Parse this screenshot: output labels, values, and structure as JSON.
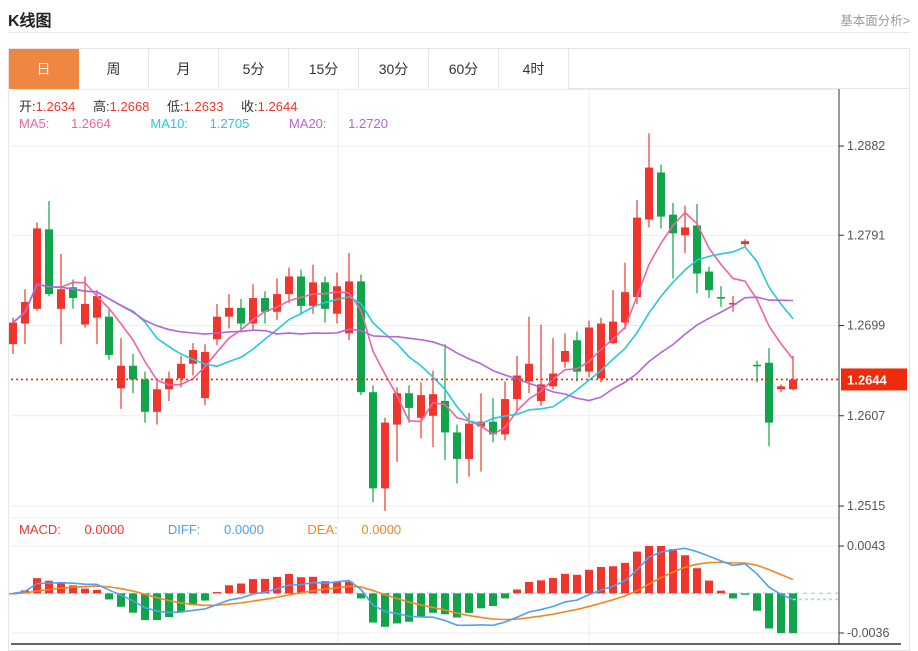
{
  "header": {
    "title": "K线图",
    "link": "基本面分析>"
  },
  "tabs": {
    "items": [
      {
        "label": "日",
        "active": true
      },
      {
        "label": "周",
        "active": false
      },
      {
        "label": "月",
        "active": false
      },
      {
        "label": "5分",
        "active": false
      },
      {
        "label": "15分",
        "active": false
      },
      {
        "label": "30分",
        "active": false
      },
      {
        "label": "60分",
        "active": false
      },
      {
        "label": "4时",
        "active": false
      }
    ]
  },
  "ohlc_bar": {
    "open_label": "开:",
    "open": "1.2634",
    "high_label": "高:",
    "high": "1.2668",
    "low_label": "低:",
    "low": "1.2633",
    "close_label": "收:",
    "close": "1.2644"
  },
  "ma_bar": {
    "ma5_label": "MA5:",
    "ma5": "1.2664",
    "ma10_label": "MA10:",
    "ma10": "1.2705",
    "ma20_label": "MA20:",
    "ma20": "1.2720"
  },
  "macd_bar": {
    "macd_label": "MACD:",
    "macd": "0.0000",
    "diff_label": "DIFF:",
    "diff": "0.0000",
    "dea_label": "DEA:",
    "dea": "0.0000"
  },
  "colors": {
    "up_red": "#f0352c",
    "down_green": "#12a44a",
    "ma5_pink": "#f0649e",
    "ma10_cyan": "#25c9da",
    "ma20_purple": "#b565d8",
    "diff_blue": "#4f9ff2",
    "dea_orange": "#f5861f",
    "grid": "#e9eef4",
    "axis_dark": "#333333",
    "label_gray": "#555555",
    "badge_red": "#ee2c0c",
    "zero_dash": "#aed4f0",
    "tab_orange": "#ef8642"
  },
  "chart_data": {
    "type": "candlestick+macd",
    "period_selected": "日",
    "price_axis_ticks": [
      1.2882,
      1.2791,
      1.2699,
      1.2607,
      1.2515
    ],
    "current_price": 1.2644,
    "current_price_label": "1.2644",
    "macd_axis_ticks": [
      0.0043,
      -0.0036
    ],
    "ma_periods": [
      5,
      10,
      20
    ],
    "macd_params": [
      12,
      26,
      9
    ],
    "legend": {
      "ma5": 1.2664,
      "ma10": 1.2705,
      "ma20": 1.272
    },
    "last_ohlc": {
      "open": 1.2634,
      "high": 1.2668,
      "low": 1.2633,
      "close": 1.2644
    },
    "candles_ohlc": [
      [
        1.268,
        1.2707,
        1.267,
        1.2702
      ],
      [
        1.2701,
        1.2736,
        1.268,
        1.2723
      ],
      [
        1.2716,
        1.2804,
        1.2714,
        1.2798
      ],
      [
        1.2797,
        1.2826,
        1.2729,
        1.2731
      ],
      [
        1.2716,
        1.2772,
        1.268,
        1.2736
      ],
      [
        1.2738,
        1.2746,
        1.2716,
        1.2727
      ],
      [
        1.27,
        1.2749,
        1.2697,
        1.2721
      ],
      [
        1.2707,
        1.2735,
        1.268,
        1.2729
      ],
      [
        1.2708,
        1.2715,
        1.2664,
        1.2669
      ],
      [
        1.2635,
        1.2686,
        1.2614,
        1.2658
      ],
      [
        1.2658,
        1.267,
        1.263,
        1.2644
      ],
      [
        1.2644,
        1.2652,
        1.26,
        1.2611
      ],
      [
        1.2611,
        1.2642,
        1.2598,
        1.2634
      ],
      [
        1.2634,
        1.2652,
        1.2622,
        1.2645
      ],
      [
        1.2645,
        1.2668,
        1.2636,
        1.266
      ],
      [
        1.266,
        1.2681,
        1.2648,
        1.2674
      ],
      [
        1.2625,
        1.268,
        1.2618,
        1.2672
      ],
      [
        1.2685,
        1.2721,
        1.2679,
        1.2708
      ],
      [
        1.2708,
        1.2731,
        1.2696,
        1.2717
      ],
      [
        1.2717,
        1.2726,
        1.2692,
        1.2701
      ],
      [
        1.2701,
        1.2741,
        1.2695,
        1.2727
      ],
      [
        1.2727,
        1.2734,
        1.2701,
        1.2713
      ],
      [
        1.2713,
        1.2747,
        1.2705,
        1.2731
      ],
      [
        1.2731,
        1.2758,
        1.2722,
        1.2749
      ],
      [
        1.2749,
        1.2756,
        1.2711,
        1.2719
      ],
      [
        1.2719,
        1.2761,
        1.2711,
        1.2743
      ],
      [
        1.2743,
        1.2749,
        1.2702,
        1.2716
      ],
      [
        1.2711,
        1.2753,
        1.2701,
        1.2739
      ],
      [
        1.2691,
        1.2773,
        1.2684,
        1.2744
      ],
      [
        1.2744,
        1.2751,
        1.2628,
        1.2631
      ],
      [
        1.2631,
        1.2638,
        1.2519,
        1.2533
      ],
      [
        1.2533,
        1.2605,
        1.251,
        1.26
      ],
      [
        1.2598,
        1.2636,
        1.256,
        1.263
      ],
      [
        1.263,
        1.2638,
        1.26,
        1.2615
      ],
      [
        1.2605,
        1.2641,
        1.2584,
        1.2628
      ],
      [
        1.2607,
        1.2653,
        1.2575,
        1.2629
      ],
      [
        1.2622,
        1.268,
        1.2562,
        1.259
      ],
      [
        1.259,
        1.2598,
        1.2538,
        1.2563
      ],
      [
        1.2563,
        1.261,
        1.2545,
        1.2599
      ],
      [
        1.2596,
        1.263,
        1.255,
        1.2601
      ],
      [
        1.2601,
        1.2625,
        1.258,
        1.2588
      ],
      [
        1.2588,
        1.2642,
        1.2582,
        1.2624
      ],
      [
        1.2624,
        1.2668,
        1.261,
        1.2648
      ],
      [
        1.2642,
        1.2708,
        1.263,
        1.266
      ],
      [
        1.2622,
        1.27,
        1.2617,
        1.2639
      ],
      [
        1.2637,
        1.2686,
        1.2634,
        1.265
      ],
      [
        1.2662,
        1.2691,
        1.2656,
        1.2673
      ],
      [
        1.2684,
        1.2693,
        1.2642,
        1.2652
      ],
      [
        1.2652,
        1.2704,
        1.2646,
        1.2697
      ],
      [
        1.2645,
        1.2707,
        1.2641,
        1.2701
      ],
      [
        1.2681,
        1.2735,
        1.268,
        1.2703
      ],
      [
        1.2702,
        1.2763,
        1.2695,
        1.2733
      ],
      [
        1.2728,
        1.2827,
        1.2721,
        1.2809
      ],
      [
        1.2807,
        1.2895,
        1.2799,
        1.286
      ],
      [
        1.2855,
        1.2863,
        1.2798,
        1.281
      ],
      [
        1.2812,
        1.2824,
        1.2747,
        1.2793
      ],
      [
        1.2791,
        1.2821,
        1.2773,
        1.2799
      ],
      [
        1.2801,
        1.2823,
        1.2732,
        1.2752
      ],
      [
        1.2754,
        1.2759,
        1.2727,
        1.2735
      ],
      [
        1.2728,
        1.2739,
        1.2718,
        1.2727
      ],
      [
        1.2721,
        1.2729,
        1.2713,
        1.2722
      ],
      [
        1.2782,
        1.2787,
        1.278,
        1.2785
      ],
      [
        1.2659,
        1.2663,
        1.2641,
        1.2658
      ],
      [
        1.2661,
        1.2676,
        1.2576,
        1.26
      ],
      [
        1.2634,
        1.2639,
        1.2631,
        1.2637
      ],
      [
        1.2634,
        1.2668,
        1.2633,
        1.2644
      ]
    ]
  }
}
